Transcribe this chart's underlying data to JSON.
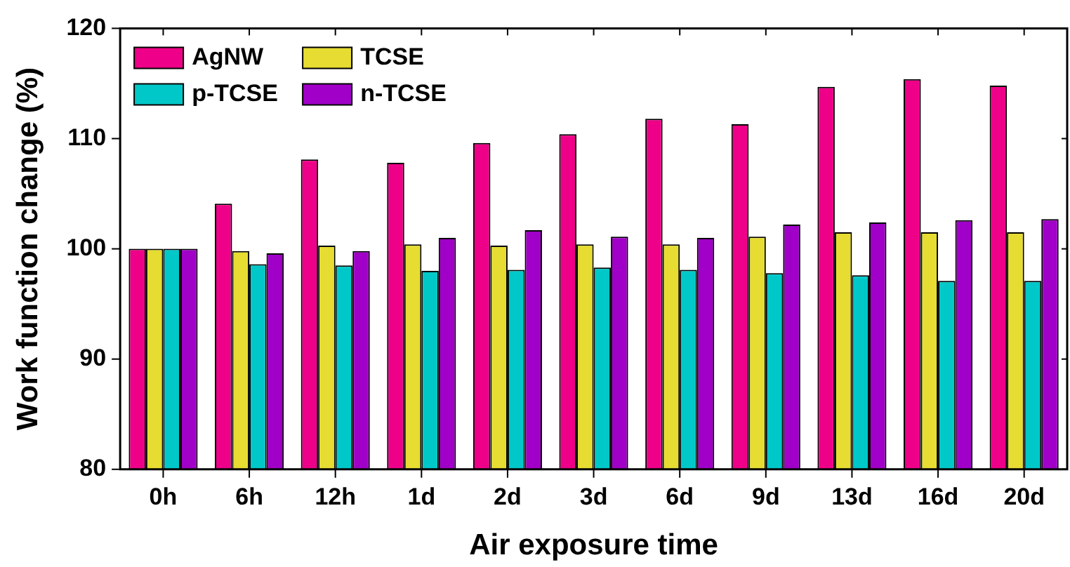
{
  "chart_data": {
    "type": "bar",
    "xlabel": "Air exposure time",
    "ylabel": "Work function change (%)",
    "categories": [
      "0h",
      "6h",
      "12h",
      "1d",
      "2d",
      "3d",
      "6d",
      "9d",
      "13d",
      "16d",
      "20d"
    ],
    "series": [
      {
        "name": "AgNW",
        "color": "#ee0088",
        "values": [
          100,
          104.1,
          108.1,
          107.8,
          109.6,
          110.4,
          111.8,
          111.3,
          114.7,
          115.4,
          114.8
        ]
      },
      {
        "name": "TCSE",
        "color": "#e6dc32",
        "values": [
          100,
          99.8,
          100.3,
          100.4,
          100.3,
          100.4,
          100.4,
          101.1,
          101.5,
          101.5,
          101.5
        ]
      },
      {
        "name": "p-TCSE",
        "color": "#00c8c8",
        "values": [
          100,
          98.6,
          98.5,
          98.0,
          98.1,
          98.3,
          98.1,
          97.8,
          97.6,
          97.1,
          97.1
        ]
      },
      {
        "name": "n-TCSE",
        "color": "#a000c8",
        "values": [
          100,
          99.6,
          99.8,
          101.0,
          101.7,
          101.1,
          101.0,
          102.2,
          102.4,
          102.6,
          102.7
        ]
      }
    ],
    "ylim": [
      80,
      120
    ],
    "yticks": [
      80,
      90,
      100,
      110,
      120
    ],
    "grid": false,
    "legend": "top left"
  }
}
